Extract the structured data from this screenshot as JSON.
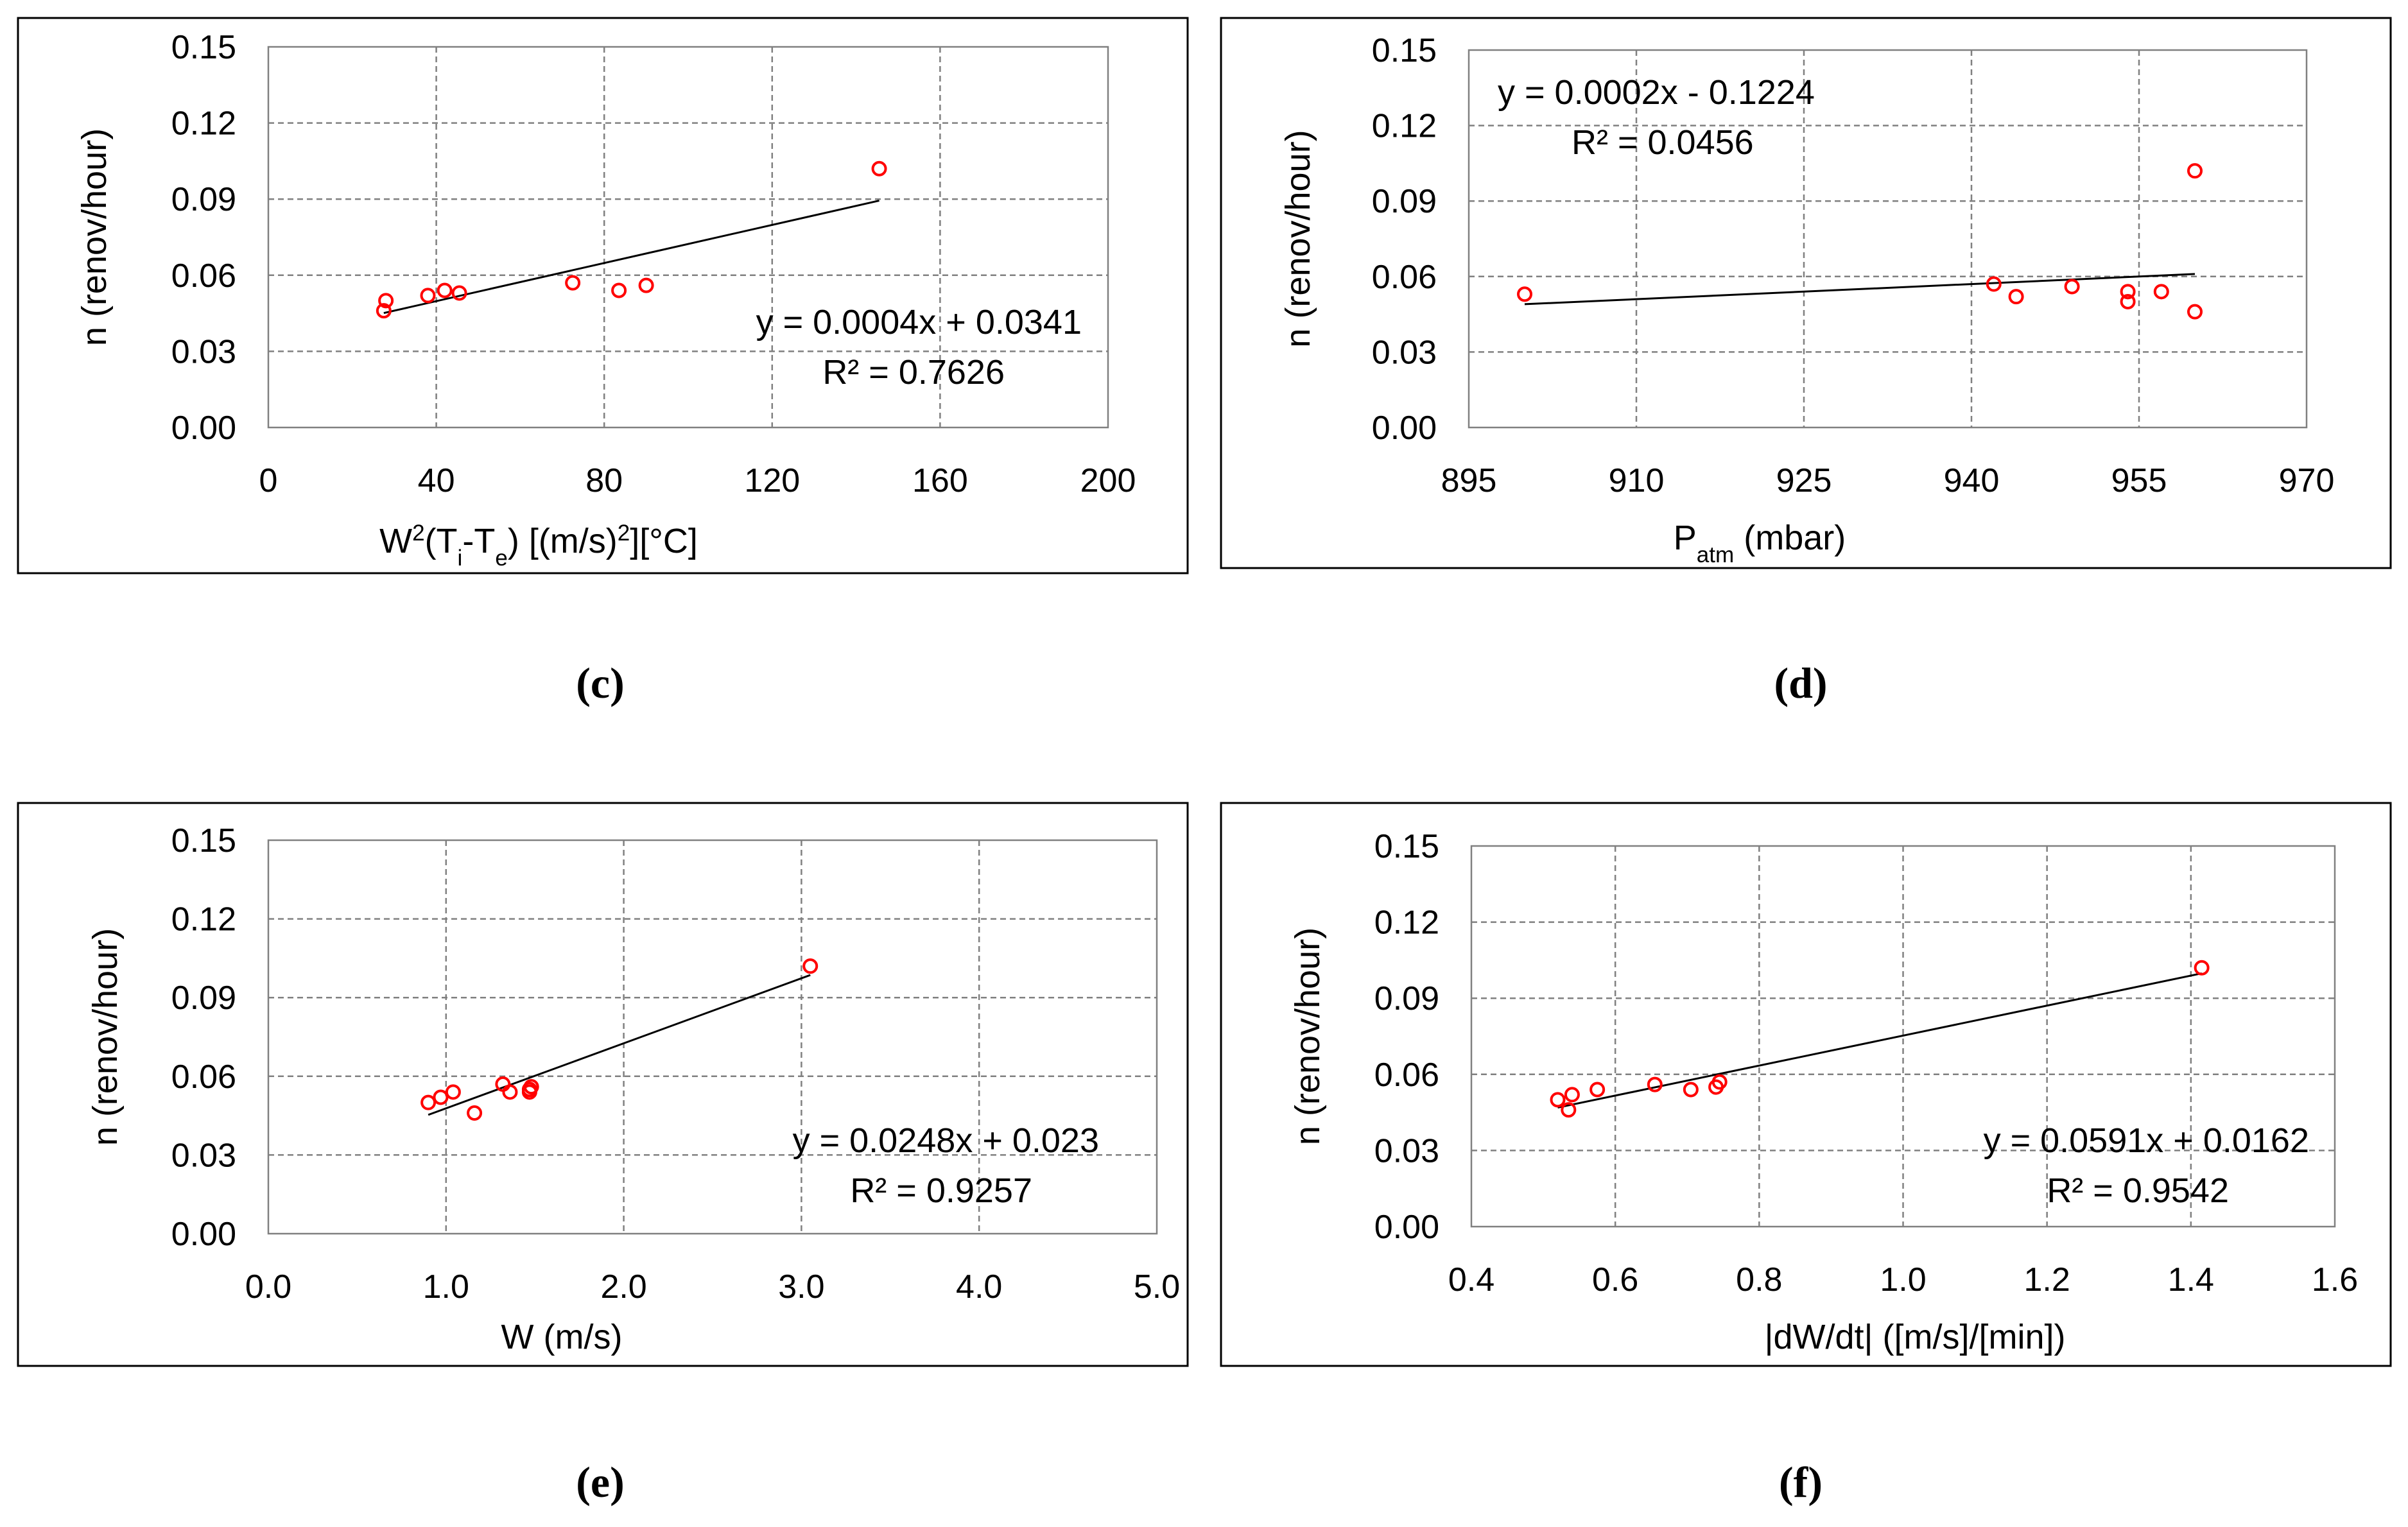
{
  "figure": {
    "captions": [
      "(c)",
      "(d)",
      "(e)",
      "(f)"
    ]
  },
  "style": {
    "marker_color": "#ff0000",
    "trend_color": "#000000",
    "grid_color": "#808080",
    "frame_color": "#000000",
    "text_color": "#000000"
  },
  "chart_data": [
    {
      "id": "c",
      "type": "scatter",
      "title": "",
      "xlabel": "W²(Ti-Te) [(m/s)²][°C]",
      "ylabel": "n (renov/hour)",
      "xlim": [
        0,
        200
      ],
      "ylim": [
        0,
        0.15
      ],
      "xticks": [
        0,
        40,
        80,
        120,
        160,
        200
      ],
      "xtick_labels": [
        "0",
        "40",
        "80",
        "120",
        "160",
        "200"
      ],
      "yticks": [
        0,
        0.03,
        0.06,
        0.09,
        0.12,
        0.15
      ],
      "ytick_labels": [
        "0.00",
        "0.03",
        "0.06",
        "0.09",
        "0.12",
        "0.15"
      ],
      "grid": true,
      "points": {
        "x": [
          27.5,
          28,
          38,
          42,
          45.5,
          72.5,
          83.5,
          90,
          145.5
        ],
        "y": [
          0.046,
          0.05,
          0.052,
          0.054,
          0.053,
          0.057,
          0.054,
          0.056,
          0.102
        ]
      },
      "trendline": {
        "x": [
          27.5,
          145.5
        ],
        "y": [
          0.0451,
          0.0894
        ]
      },
      "equation": "y = 0.0004x + 0.0341",
      "r2": "R² = 0.7626",
      "annotation_position": "lower-right"
    },
    {
      "id": "d",
      "type": "scatter",
      "title": "",
      "xlabel": "Patm (mbar)",
      "ylabel": "n (renov/hour)",
      "xlim": [
        895,
        970
      ],
      "ylim": [
        0,
        0.15
      ],
      "xticks": [
        895,
        910,
        925,
        940,
        955,
        970
      ],
      "xtick_labels": [
        "895",
        "910",
        "925",
        "940",
        "955",
        "970"
      ],
      "yticks": [
        0,
        0.03,
        0.06,
        0.09,
        0.12,
        0.15
      ],
      "ytick_labels": [
        "0.00",
        "0.03",
        "0.06",
        "0.09",
        "0.12",
        "0.15"
      ],
      "grid": true,
      "points": {
        "x": [
          900,
          942,
          944,
          949,
          954,
          954,
          957,
          960,
          960
        ],
        "y": [
          0.053,
          0.057,
          0.052,
          0.056,
          0.054,
          0.05,
          0.054,
          0.102,
          0.046
        ]
      },
      "trendline": {
        "x": [
          900,
          960
        ],
        "y": [
          0.049,
          0.061
        ]
      },
      "equation": "y = 0.0002x - 0.1224",
      "r2": "R² = 0.0456",
      "annotation_position": "top-left"
    },
    {
      "id": "e",
      "type": "scatter",
      "title": "",
      "xlabel": "W (m/s)",
      "ylabel": "n (renov/hour)",
      "xlim": [
        0,
        5
      ],
      "ylim": [
        0,
        0.15
      ],
      "xticks": [
        0,
        1,
        2,
        3,
        4,
        5
      ],
      "xtick_labels": [
        "0.0",
        "1.0",
        "2.0",
        "3.0",
        "4.0",
        "5.0"
      ],
      "yticks": [
        0,
        0.03,
        0.06,
        0.09,
        0.12,
        0.15
      ],
      "ytick_labels": [
        "0.00",
        "0.03",
        "0.06",
        "0.09",
        "0.12",
        "0.15"
      ],
      "grid": true,
      "points": {
        "x": [
          0.9,
          0.97,
          1.04,
          1.16,
          1.32,
          1.36,
          1.47,
          1.47,
          1.48,
          3.05
        ],
        "y": [
          0.05,
          0.052,
          0.054,
          0.046,
          0.057,
          0.054,
          0.054,
          0.055,
          0.056,
          0.102
        ]
      },
      "trendline": {
        "x": [
          0.9,
          3.05
        ],
        "y": [
          0.0453,
          0.0986
        ]
      },
      "equation": "y = 0.0248x + 0.023",
      "r2": "R² = 0.9257",
      "annotation_position": "lower-right"
    },
    {
      "id": "f",
      "type": "scatter",
      "title": "",
      "xlabel": "|dW/dt| ([m/s]/[min])",
      "ylabel": "n (renov/hour)",
      "xlim": [
        0.4,
        1.6
      ],
      "ylim": [
        0,
        0.15
      ],
      "xticks": [
        0.4,
        0.6,
        0.8,
        1.0,
        1.2,
        1.4,
        1.6
      ],
      "xtick_labels": [
        "0.4",
        "0.6",
        "0.8",
        "1.0",
        "1.2",
        "1.4",
        "1.6"
      ],
      "yticks": [
        0,
        0.03,
        0.06,
        0.09,
        0.12,
        0.15
      ],
      "ytick_labels": [
        "0.00",
        "0.03",
        "0.06",
        "0.09",
        "0.12",
        "0.15"
      ],
      "grid": true,
      "points": {
        "x": [
          0.52,
          0.535,
          0.54,
          0.575,
          0.655,
          0.705,
          0.74,
          0.745,
          1.415
        ],
        "y": [
          0.05,
          0.046,
          0.052,
          0.054,
          0.056,
          0.054,
          0.055,
          0.057,
          0.102
        ]
      },
      "trendline": {
        "x": [
          0.52,
          1.415
        ],
        "y": [
          0.0469,
          0.0998
        ]
      },
      "equation": "y = 0.0591x + 0.0162",
      "r2": "R² = 0.9542",
      "annotation_position": "lower-right"
    }
  ]
}
